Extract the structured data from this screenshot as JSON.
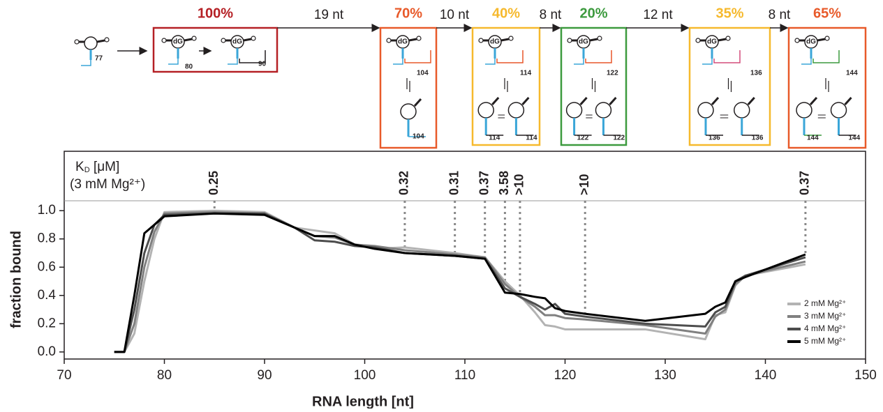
{
  "chart_data": {
    "type": "line",
    "x_label": "RNA length [nt]",
    "y_label": "fraction bound",
    "x": [
      75,
      76,
      77,
      78,
      79,
      80,
      85,
      90,
      93,
      95,
      97,
      99,
      101,
      104,
      109,
      112,
      114,
      115.5,
      117,
      118,
      119,
      120,
      122,
      128,
      134,
      135,
      136,
      137,
      138,
      144
    ],
    "series": [
      {
        "name": "2 mM Mg²⁺",
        "color": "#b3b3b3",
        "values": [
          0,
          0,
          0.13,
          0.5,
          0.8,
          0.99,
          1.0,
          0.99,
          0.88,
          0.86,
          0.84,
          0.76,
          0.73,
          0.74,
          0.7,
          0.67,
          0.5,
          0.4,
          0.28,
          0.19,
          0.18,
          0.16,
          0.16,
          0.16,
          0.09,
          0.26,
          0.28,
          0.47,
          0.54,
          0.62
        ]
      },
      {
        "name": "3 mM Mg²⁺",
        "color": "#808080",
        "values": [
          0,
          0,
          0.2,
          0.6,
          0.85,
          0.98,
          0.99,
          0.98,
          0.88,
          0.82,
          0.81,
          0.76,
          0.75,
          0.72,
          0.69,
          0.67,
          0.48,
          0.39,
          0.32,
          0.26,
          0.26,
          0.24,
          0.23,
          0.19,
          0.13,
          0.25,
          0.3,
          0.48,
          0.54,
          0.64
        ]
      },
      {
        "name": "4 mM Mg²⁺",
        "color": "#4d4d4d",
        "values": [
          0,
          0,
          0.3,
          0.7,
          0.9,
          0.97,
          0.98,
          0.98,
          0.88,
          0.79,
          0.78,
          0.75,
          0.74,
          0.7,
          0.68,
          0.66,
          0.45,
          0.39,
          0.34,
          0.3,
          0.34,
          0.27,
          0.25,
          0.2,
          0.18,
          0.28,
          0.32,
          0.5,
          0.54,
          0.67
        ]
      },
      {
        "name": "5 mM Mg²⁺",
        "color": "#000000",
        "values": [
          0,
          0,
          0.4,
          0.84,
          0.9,
          0.96,
          0.98,
          0.97,
          0.88,
          0.82,
          0.82,
          0.76,
          0.73,
          0.7,
          0.68,
          0.66,
          0.42,
          0.41,
          0.39,
          0.38,
          0.31,
          0.29,
          0.27,
          0.22,
          0.27,
          0.32,
          0.35,
          0.5,
          0.53,
          0.69
        ]
      }
    ],
    "xlim": [
      70,
      150
    ],
    "xticks": [
      70,
      80,
      90,
      100,
      110,
      120,
      130,
      140,
      150
    ],
    "ylim": [
      -0.05,
      1.07
    ],
    "yticks": [
      {
        "value": 0,
        "label": "0.0"
      },
      0.2,
      0.4,
      0.6,
      0.8,
      {
        "value": 1,
        "label": "1.0"
      }
    ],
    "legend": "lower right",
    "kd_title": {
      "main": "K",
      "sub": "D",
      "rest": " [μM]",
      "condition": "(3 mM Mg²⁺)"
    },
    "kd_values": [
      {
        "x": 85,
        "label": "0.25"
      },
      {
        "x": 104,
        "label": "0.32"
      },
      {
        "x": 109,
        "label": "0.31"
      },
      {
        "x": 112,
        "label": "0.37"
      },
      {
        "x": 114,
        "label": "3.58"
      },
      {
        "x": 115.5,
        "label": ">10"
      },
      {
        "x": 122,
        "label": ">10"
      },
      {
        "x": 144,
        "label": "0.37"
      }
    ]
  },
  "diagram": {
    "ligand": "dG",
    "start": "77",
    "steps": [
      "19 nt",
      "10 nt",
      "8 nt",
      "12 nt",
      "8 nt"
    ],
    "stages": [
      {
        "percent": "100%",
        "color": "#b52025",
        "labels": [
          "80",
          "90"
        ]
      },
      {
        "percent": "70%",
        "color": "#e85a2a",
        "labels": [
          "104",
          "104"
        ]
      },
      {
        "percent": "40%",
        "color": "#f6b92d",
        "labels": [
          "114",
          "114",
          "114"
        ]
      },
      {
        "percent": "20%",
        "color": "#3c9a3e",
        "labels": [
          "122",
          "122",
          "122"
        ]
      },
      {
        "percent": "35%",
        "color": "#f6b92d",
        "labels": [
          "136",
          "136",
          "136"
        ]
      },
      {
        "percent": "65%",
        "color": "#e85a2a",
        "labels": [
          "144",
          "144",
          "144"
        ]
      }
    ]
  }
}
